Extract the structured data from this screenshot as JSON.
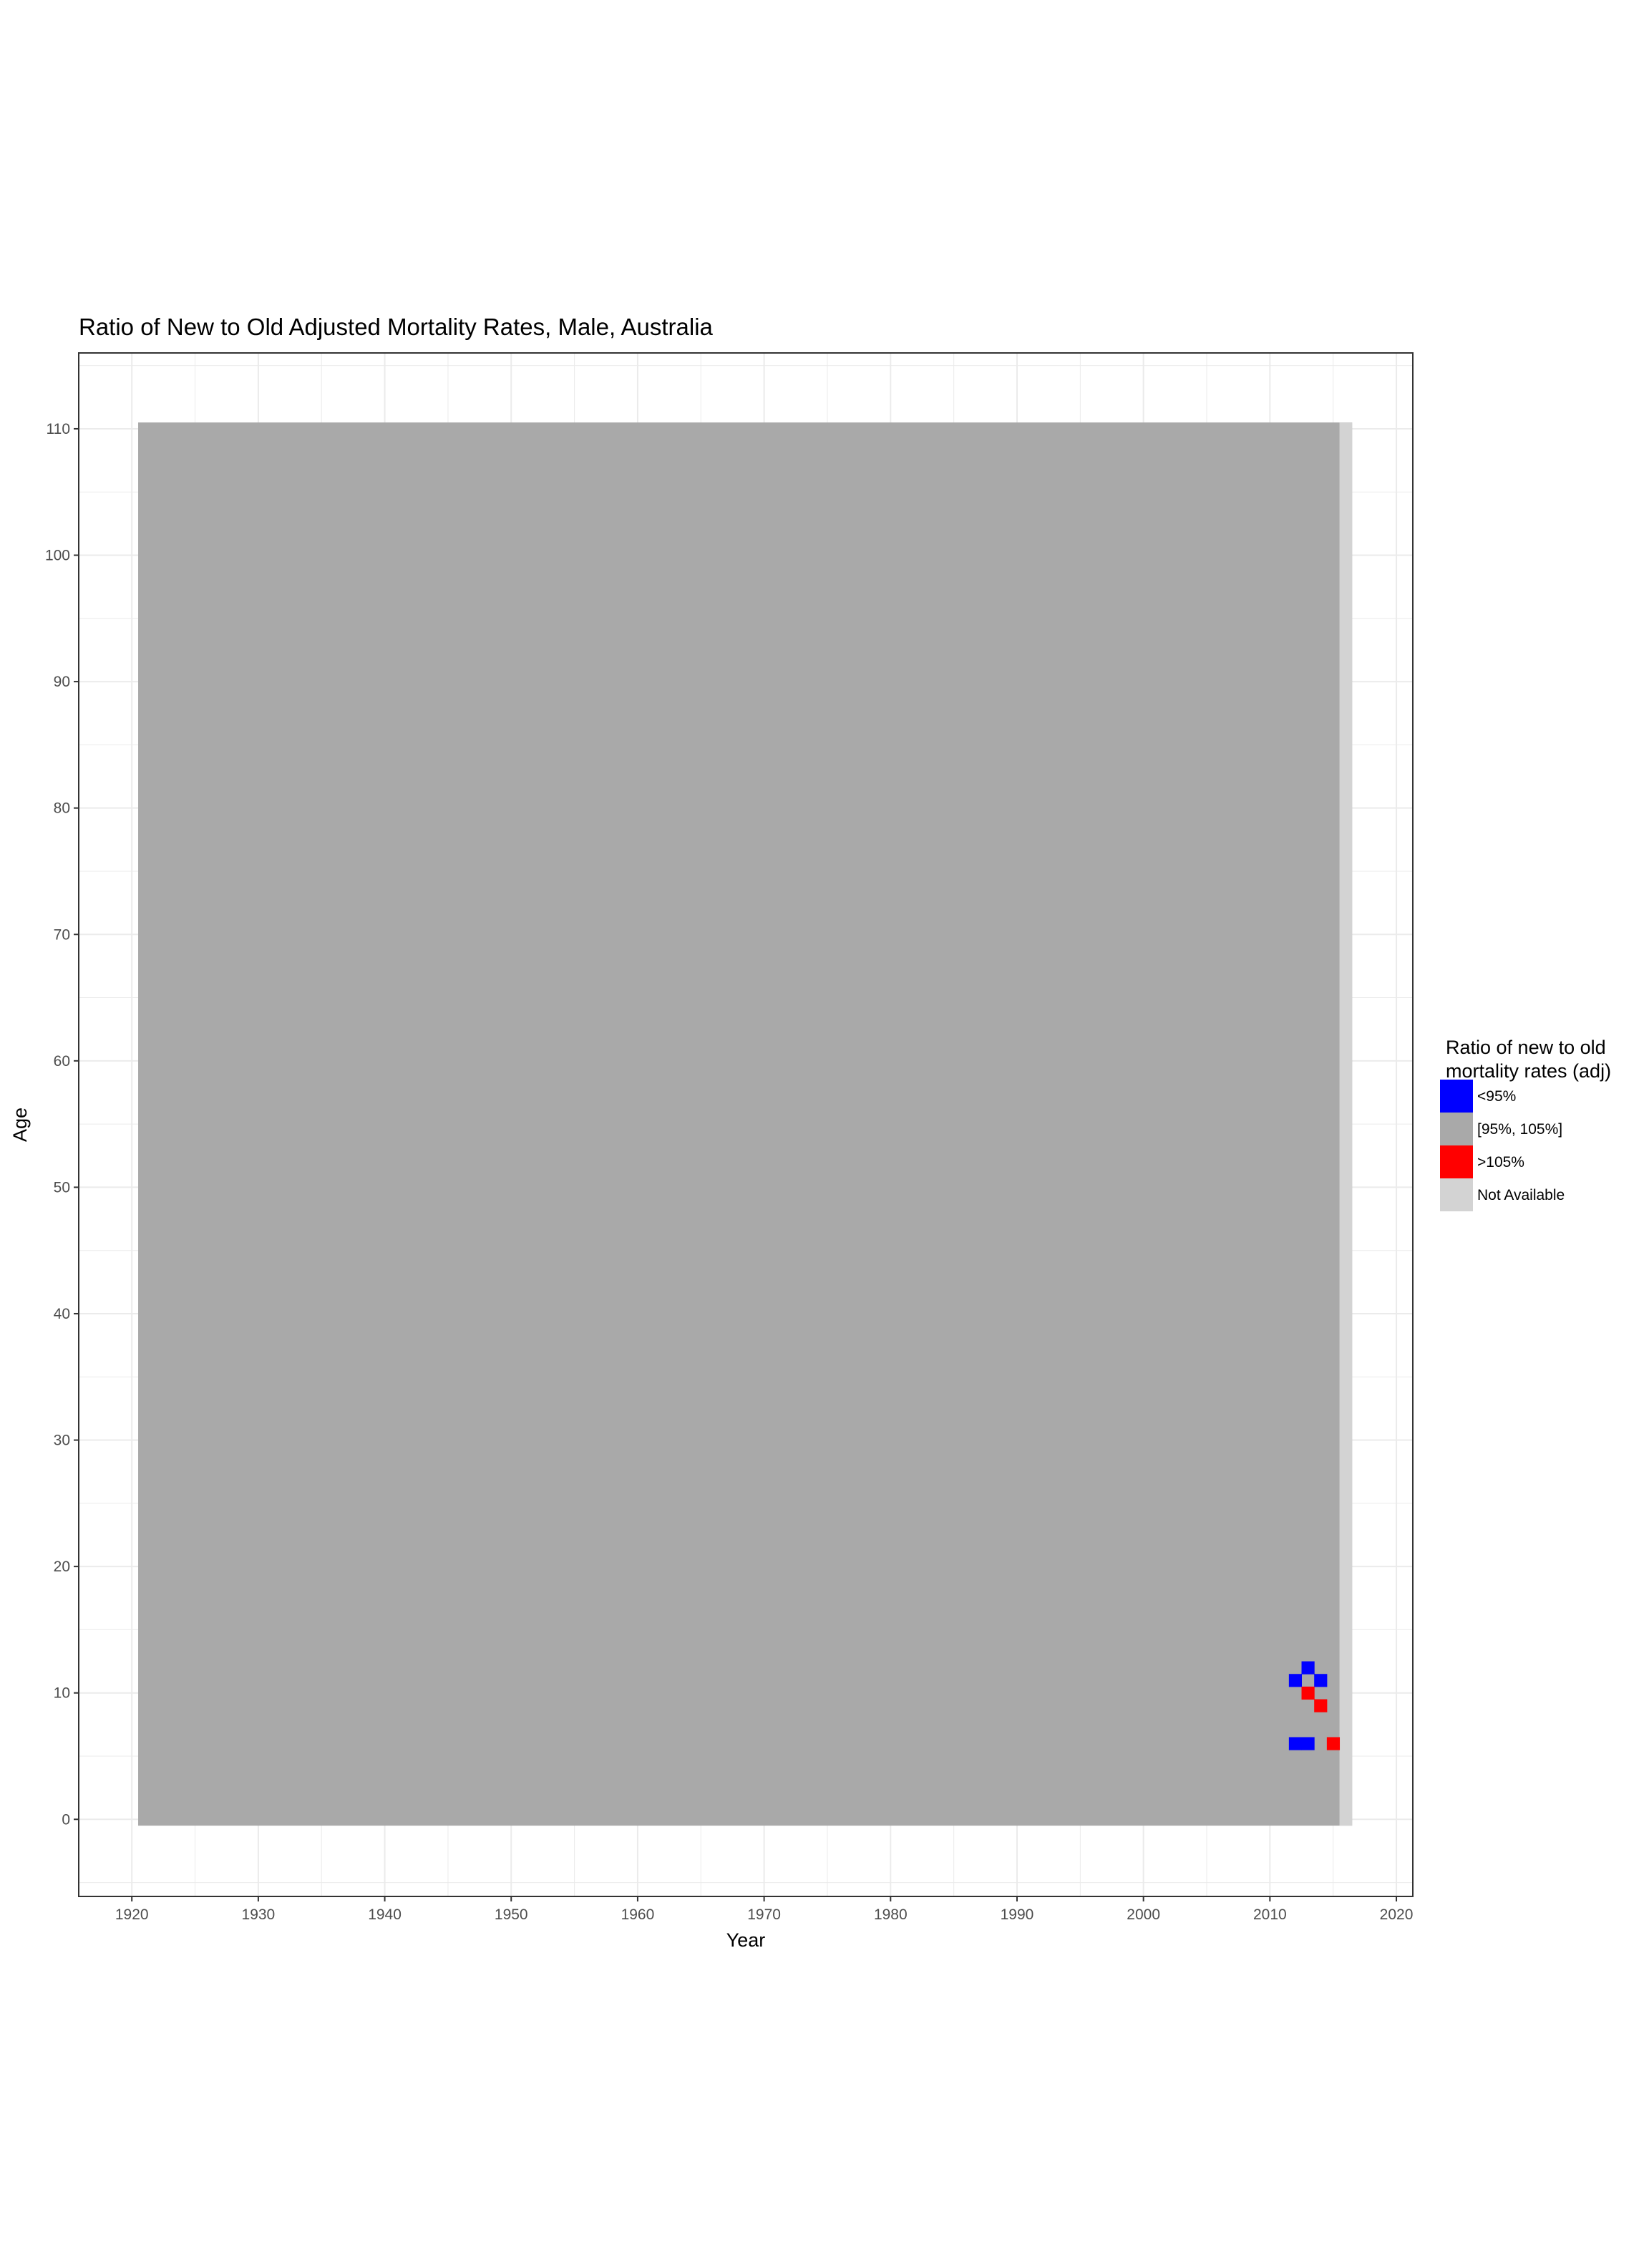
{
  "chart_data": {
    "type": "heatmap",
    "title": "Ratio of New to Old Adjusted Mortality Rates, Male, Australia",
    "xlabel": "Year",
    "ylabel": "Age",
    "xlim": [
      1915.8,
      2021.3
    ],
    "ylim": [
      -6.1,
      116
    ],
    "x_ticks": [
      1920,
      1930,
      1940,
      1950,
      1960,
      1970,
      1980,
      1990,
      2000,
      2010,
      2020
    ],
    "y_ticks": [
      0,
      10,
      20,
      30,
      40,
      50,
      60,
      70,
      80,
      90,
      100,
      110
    ],
    "x_tick_labels": [
      "1920",
      "1930",
      "1940",
      "1950",
      "1960",
      "1970",
      "1980",
      "1990",
      "2000",
      "2010",
      "2020"
    ],
    "y_tick_labels": [
      "0",
      "10",
      "20",
      "30",
      "40",
      "50",
      "60",
      "70",
      "80",
      "90",
      "100",
      "110"
    ],
    "grid": true,
    "years": [
      1921,
      2016
    ],
    "ages": [
      0,
      110
    ],
    "default_category": "[95%, 105%]",
    "not_available": [
      {
        "year": 2016,
        "age_from": 0,
        "age_to": 110
      }
    ],
    "cells": [
      {
        "year": 2013,
        "age": 12,
        "category": "<95%"
      },
      {
        "year": 2012,
        "age": 11,
        "category": "<95%"
      },
      {
        "year": 2014,
        "age": 11,
        "category": "<95%"
      },
      {
        "year": 2013,
        "age": 10,
        "category": ">105%"
      },
      {
        "year": 2014,
        "age": 9,
        "category": ">105%"
      },
      {
        "year": 2012,
        "age": 6,
        "category": "<95%"
      },
      {
        "year": 2013,
        "age": 6,
        "category": "<95%"
      },
      {
        "year": 2015,
        "age": 6,
        "category": ">105%"
      }
    ],
    "legend": {
      "title_lines": [
        "Ratio of new to old",
        "mortality rates (adj)"
      ],
      "placement": "right",
      "entries": [
        {
          "label": "<95%",
          "color": "#0000ff"
        },
        {
          "label": "[95%, 105%]",
          "color": "#a9a9a9"
        },
        {
          "label": ">105%",
          "color": "#ff0000"
        },
        {
          "label": "Not Available",
          "color": "#d3d3d3"
        }
      ]
    }
  }
}
